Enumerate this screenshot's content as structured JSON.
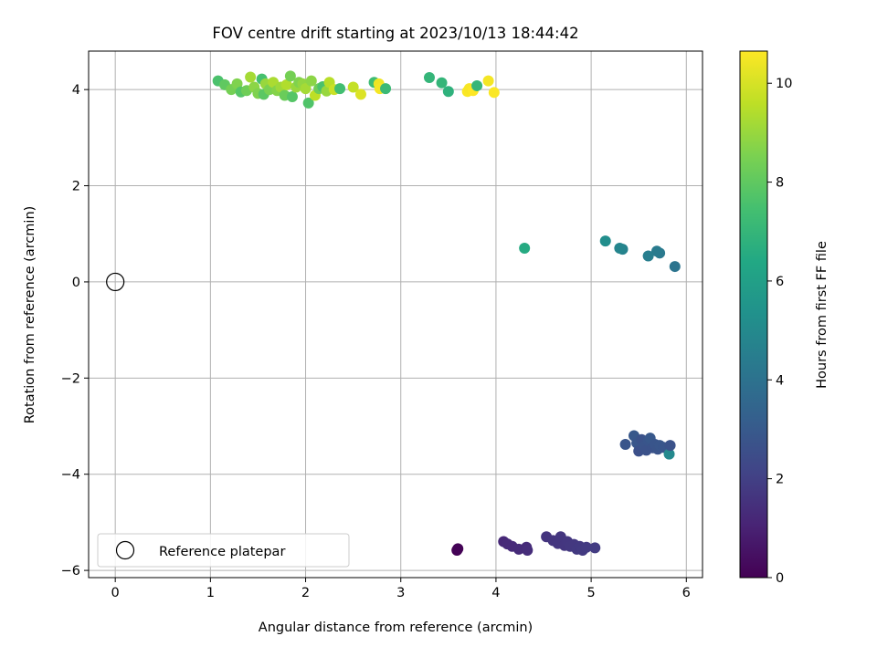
{
  "chart_data": {
    "type": "scatter",
    "title": "FOV centre drift starting at 2023/10/13 18:44:42",
    "xlabel": "Angular distance from reference (arcmin)",
    "ylabel": "Rotation from reference (arcmin)",
    "xlim": [
      -0.28,
      6.17
    ],
    "ylim": [
      -6.15,
      4.8
    ],
    "xticks": [
      0,
      1,
      2,
      3,
      4,
      5,
      6
    ],
    "yticks": [
      -6,
      -4,
      -2,
      0,
      2,
      4
    ],
    "grid": true,
    "legend": {
      "placement": "bottom-left",
      "entries": [
        "Reference platepar"
      ]
    },
    "reference_point": {
      "x": 0,
      "y": 0,
      "label": "Reference platepar"
    },
    "colorbar": {
      "label": "Hours from first FF file",
      "range": [
        0,
        10.65
      ],
      "ticks": [
        0,
        2,
        4,
        6,
        8,
        10
      ],
      "colormap": "viridis"
    },
    "points": [
      {
        "x": 3.59,
        "y": -5.58,
        "h": 0.0
      },
      {
        "x": 3.6,
        "y": -5.55,
        "h": 0.05
      },
      {
        "x": 4.08,
        "y": -5.4,
        "h": 1.2
      },
      {
        "x": 4.12,
        "y": -5.45,
        "h": 1.25
      },
      {
        "x": 4.17,
        "y": -5.5,
        "h": 1.28
      },
      {
        "x": 4.24,
        "y": -5.56,
        "h": 1.3
      },
      {
        "x": 4.32,
        "y": -5.52,
        "h": 1.3
      },
      {
        "x": 4.33,
        "y": -5.58,
        "h": 1.35
      },
      {
        "x": 4.53,
        "y": -5.3,
        "h": 1.6
      },
      {
        "x": 4.6,
        "y": -5.38,
        "h": 1.62
      },
      {
        "x": 4.65,
        "y": -5.44,
        "h": 1.65
      },
      {
        "x": 4.68,
        "y": -5.3,
        "h": 1.66
      },
      {
        "x": 4.72,
        "y": -5.48,
        "h": 1.68
      },
      {
        "x": 4.75,
        "y": -5.4,
        "h": 1.7
      },
      {
        "x": 4.78,
        "y": -5.5,
        "h": 1.72
      },
      {
        "x": 4.82,
        "y": -5.46,
        "h": 1.74
      },
      {
        "x": 4.85,
        "y": -5.56,
        "h": 1.75
      },
      {
        "x": 4.88,
        "y": -5.5,
        "h": 1.78
      },
      {
        "x": 4.91,
        "y": -5.58,
        "h": 1.8
      },
      {
        "x": 4.95,
        "y": -5.52,
        "h": 1.82
      },
      {
        "x": 5.04,
        "y": -5.53,
        "h": 1.85
      },
      {
        "x": 5.36,
        "y": -3.38,
        "h": 2.8
      },
      {
        "x": 5.45,
        "y": -3.2,
        "h": 2.9
      },
      {
        "x": 5.48,
        "y": -3.35,
        "h": 2.85
      },
      {
        "x": 5.5,
        "y": -3.52,
        "h": 2.6
      },
      {
        "x": 5.53,
        "y": -3.28,
        "h": 2.7
      },
      {
        "x": 5.56,
        "y": -3.42,
        "h": 2.75
      },
      {
        "x": 5.58,
        "y": -3.5,
        "h": 2.7
      },
      {
        "x": 5.6,
        "y": -3.3,
        "h": 2.8
      },
      {
        "x": 5.62,
        "y": -3.25,
        "h": 2.9
      },
      {
        "x": 5.65,
        "y": -3.45,
        "h": 2.7
      },
      {
        "x": 5.67,
        "y": -3.38,
        "h": 2.8
      },
      {
        "x": 5.7,
        "y": -3.48,
        "h": 2.75
      },
      {
        "x": 5.72,
        "y": -3.4,
        "h": 2.85
      },
      {
        "x": 5.76,
        "y": -3.44,
        "h": 2.8
      },
      {
        "x": 5.82,
        "y": -3.58,
        "h": 5.0
      },
      {
        "x": 5.83,
        "y": -3.4,
        "h": 2.7
      },
      {
        "x": 5.88,
        "y": 0.32,
        "h": 4.1
      },
      {
        "x": 5.72,
        "y": 0.6,
        "h": 4.3
      },
      {
        "x": 5.69,
        "y": 0.64,
        "h": 4.4
      },
      {
        "x": 5.6,
        "y": 0.54,
        "h": 4.5
      },
      {
        "x": 5.33,
        "y": 0.68,
        "h": 4.7
      },
      {
        "x": 5.3,
        "y": 0.7,
        "h": 4.8
      },
      {
        "x": 5.15,
        "y": 0.85,
        "h": 5.2
      },
      {
        "x": 4.3,
        "y": 0.7,
        "h": 6.5
      },
      {
        "x": 1.08,
        "y": 4.18,
        "h": 7.6
      },
      {
        "x": 1.15,
        "y": 4.1,
        "h": 8.0
      },
      {
        "x": 1.22,
        "y": 4.0,
        "h": 8.4
      },
      {
        "x": 1.28,
        "y": 4.12,
        "h": 8.6
      },
      {
        "x": 1.32,
        "y": 3.95,
        "h": 7.8
      },
      {
        "x": 1.38,
        "y": 3.98,
        "h": 8.3
      },
      {
        "x": 1.42,
        "y": 4.26,
        "h": 9.2
      },
      {
        "x": 1.46,
        "y": 4.05,
        "h": 8.8
      },
      {
        "x": 1.5,
        "y": 3.92,
        "h": 8.6
      },
      {
        "x": 1.54,
        "y": 4.22,
        "h": 7.5
      },
      {
        "x": 1.56,
        "y": 3.9,
        "h": 7.9
      },
      {
        "x": 1.58,
        "y": 4.12,
        "h": 9.0
      },
      {
        "x": 1.62,
        "y": 4.0,
        "h": 8.5
      },
      {
        "x": 1.66,
        "y": 4.15,
        "h": 9.3
      },
      {
        "x": 1.7,
        "y": 3.98,
        "h": 8.7
      },
      {
        "x": 1.74,
        "y": 4.05,
        "h": 9.1
      },
      {
        "x": 1.78,
        "y": 3.88,
        "h": 8.2
      },
      {
        "x": 1.8,
        "y": 4.1,
        "h": 9.4
      },
      {
        "x": 1.84,
        "y": 4.28,
        "h": 8.4
      },
      {
        "x": 1.86,
        "y": 3.85,
        "h": 7.8
      },
      {
        "x": 1.9,
        "y": 4.05,
        "h": 9.0
      },
      {
        "x": 1.93,
        "y": 4.15,
        "h": 8.6
      },
      {
        "x": 1.97,
        "y": 4.12,
        "h": 8.9
      },
      {
        "x": 2.0,
        "y": 4.02,
        "h": 9.2
      },
      {
        "x": 2.03,
        "y": 3.72,
        "h": 7.7
      },
      {
        "x": 2.06,
        "y": 4.18,
        "h": 8.8
      },
      {
        "x": 2.1,
        "y": 3.88,
        "h": 9.6
      },
      {
        "x": 2.14,
        "y": 4.02,
        "h": 8.3
      },
      {
        "x": 2.18,
        "y": 4.06,
        "h": 7.6
      },
      {
        "x": 2.22,
        "y": 3.97,
        "h": 9.0
      },
      {
        "x": 2.25,
        "y": 4.15,
        "h": 9.5
      },
      {
        "x": 2.3,
        "y": 4.0,
        "h": 9.8
      },
      {
        "x": 2.36,
        "y": 4.02,
        "h": 7.4
      },
      {
        "x": 2.5,
        "y": 4.05,
        "h": 9.7
      },
      {
        "x": 2.58,
        "y": 3.9,
        "h": 10.1
      },
      {
        "x": 2.72,
        "y": 4.15,
        "h": 7.3
      },
      {
        "x": 2.77,
        "y": 4.12,
        "h": 10.4
      },
      {
        "x": 2.78,
        "y": 4.02,
        "h": 10.5
      },
      {
        "x": 2.84,
        "y": 4.02,
        "h": 7.2
      },
      {
        "x": 3.3,
        "y": 4.25,
        "h": 7.0
      },
      {
        "x": 3.43,
        "y": 4.14,
        "h": 7.0
      },
      {
        "x": 3.5,
        "y": 3.96,
        "h": 6.8
      },
      {
        "x": 3.7,
        "y": 3.96,
        "h": 10.6
      },
      {
        "x": 3.72,
        "y": 4.02,
        "h": 10.55
      },
      {
        "x": 3.76,
        "y": 3.98,
        "h": 10.65
      },
      {
        "x": 3.8,
        "y": 4.08,
        "h": 7.0
      },
      {
        "x": 3.92,
        "y": 4.18,
        "h": 10.5
      },
      {
        "x": 3.98,
        "y": 3.94,
        "h": 10.6
      }
    ]
  }
}
